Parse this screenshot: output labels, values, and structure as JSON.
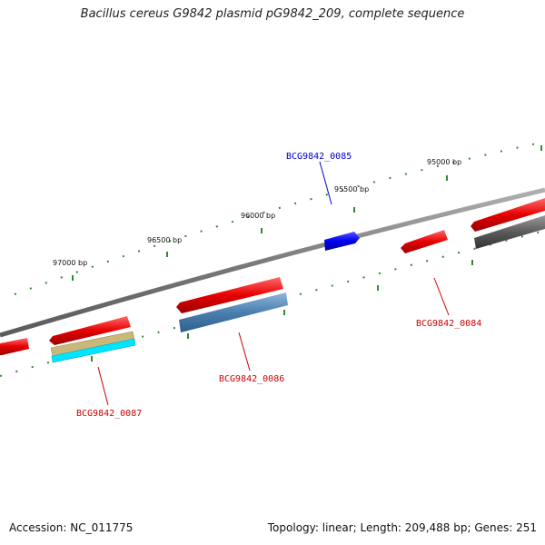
{
  "title": "Bacillus cereus G9842 plasmid pG9842_209, complete sequence",
  "accession_text": "Accession: NC_011775",
  "summary_text": "Topology: linear; Length: 209,488 bp; Genes: 251",
  "ruler_labels": [
    "95000 bp",
    "95500 bp",
    "96000 bp",
    "96500 bp",
    "97000 bp"
  ],
  "genes": [
    {
      "id": "BCG9842_0084",
      "color": "#cc0000"
    },
    {
      "id": "BCG9842_0085",
      "color": "#0000cc"
    },
    {
      "id": "BCG9842_0086",
      "color": "#cc0000"
    },
    {
      "id": "BCG9842_0087",
      "color": "#cc0000"
    }
  ],
  "colors": {
    "backbone": "#7a7a7a",
    "cds_red": "#e60000",
    "cds_blue": "#0000ee",
    "cds_grey": "#555555",
    "steelblue": "#4a7fb0",
    "khaki": "#c8b87a",
    "cyan": "#00e5ff",
    "tick_green": "#2e8b2e"
  }
}
